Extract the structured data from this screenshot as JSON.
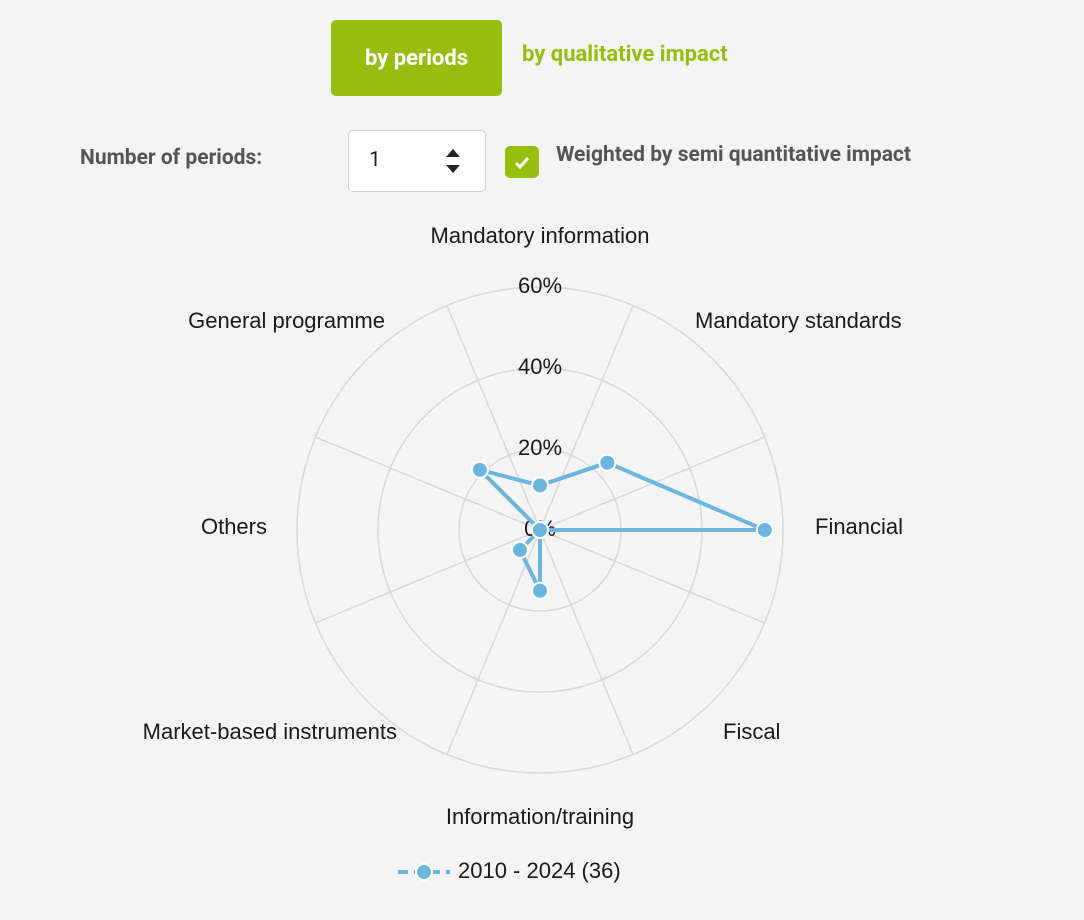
{
  "tabs": {
    "active": "by periods",
    "inactive": "by qualitative impact"
  },
  "controls": {
    "periods_label": "Number of periods:",
    "periods_value": "1",
    "weighted_label": "Weighted by semi quantitative impact"
  },
  "chart_data": {
    "type": "radar",
    "categories": [
      "Mandatory information",
      "Mandatory standards",
      "Financial",
      "Fiscal",
      "Information/training",
      "Market-based instruments",
      "Others",
      "General programme"
    ],
    "series": [
      {
        "name": "2010 - 2024 (36)",
        "color": "#6bb6df",
        "values": [
          11,
          23.5,
          55.5,
          0,
          15,
          7,
          0,
          21
        ]
      }
    ],
    "ylim": [
      0,
      60
    ],
    "yticks": [
      {
        "value": 0,
        "label": "0%"
      },
      {
        "value": 20,
        "label": "20%"
      },
      {
        "value": 40,
        "label": "40%"
      },
      {
        "value": 60,
        "label": "60%"
      }
    ],
    "grid": true
  }
}
